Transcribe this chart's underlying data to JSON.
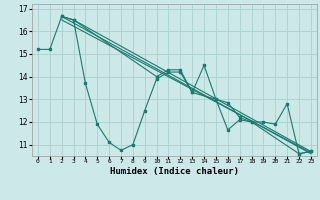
{
  "xlabel": "Humidex (Indice chaleur)",
  "background_color": "#cce8e8",
  "line_color": "#1a7a6e",
  "grid_color": "#aad0d0",
  "xlim": [
    -0.5,
    23.5
  ],
  "ylim": [
    10.5,
    17.2
  ],
  "yticks": [
    11,
    12,
    13,
    14,
    15,
    16,
    17
  ],
  "xtick_labels": [
    "0",
    "1",
    "2",
    "3",
    "4",
    "5",
    "6",
    "7",
    "8",
    "9",
    "10",
    "11",
    "12",
    "13",
    "14",
    "15",
    "16",
    "17",
    "18",
    "19",
    "20",
    "21",
    "22",
    "23"
  ],
  "series1_x": [
    0,
    1,
    2,
    3,
    4,
    5,
    6,
    7,
    8,
    9,
    10,
    11,
    12,
    13,
    14,
    15,
    16,
    17,
    18,
    19,
    20,
    21,
    22,
    23
  ],
  "series1_y": [
    15.2,
    15.2,
    16.65,
    16.5,
    13.7,
    11.9,
    11.1,
    10.75,
    11.0,
    12.5,
    13.9,
    14.2,
    14.2,
    13.3,
    14.5,
    13.0,
    11.65,
    12.1,
    12.0,
    12.0,
    11.9,
    12.8,
    10.6,
    10.7
  ],
  "series2_x": [
    2,
    3,
    10,
    11,
    12,
    13,
    15,
    16,
    17,
    18,
    22,
    23
  ],
  "series2_y": [
    16.65,
    16.5,
    14.0,
    14.3,
    14.3,
    13.3,
    13.0,
    12.85,
    12.2,
    12.0,
    10.6,
    10.7
  ],
  "trend1_x": [
    2,
    23
  ],
  "trend1_y": [
    16.65,
    10.6
  ],
  "trend2_x": [
    2,
    23
  ],
  "trend2_y": [
    16.5,
    10.65
  ],
  "trend3_x": [
    3,
    23
  ],
  "trend3_y": [
    16.5,
    10.7
  ]
}
